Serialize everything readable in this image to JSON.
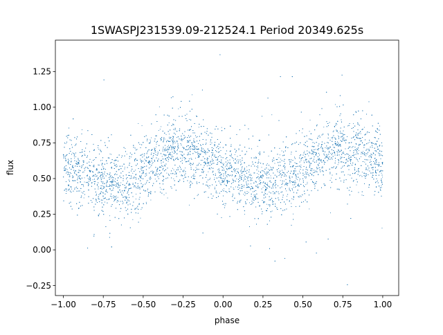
{
  "chart_data": {
    "type": "scatter",
    "title": "1SWASPJ231539.09-212524.1 Period 20349.625s",
    "xlabel": "phase",
    "ylabel": "flux",
    "xlim": [
      -1.05,
      1.1
    ],
    "ylim": [
      -0.32,
      1.47
    ],
    "xticks": [
      -1.0,
      -0.75,
      -0.5,
      -0.25,
      0.0,
      0.25,
      0.5,
      0.75,
      1.0
    ],
    "xtick_labels": [
      "−1.00",
      "−0.75",
      "−0.50",
      "−0.25",
      "0.00",
      "0.25",
      "0.50",
      "0.75",
      "1.00"
    ],
    "yticks": [
      -0.25,
      0.0,
      0.25,
      0.5,
      0.75,
      1.0,
      1.25
    ],
    "ytick_labels": [
      "−0.25",
      "0.00",
      "0.25",
      "0.50",
      "0.75",
      "1.00",
      "1.25"
    ],
    "grid": false,
    "marker_color": "#1f77b4",
    "series": [
      {
        "phase_range": [
          -1.0,
          1.0
        ],
        "curve_phase": [
          -1.0,
          -0.9,
          -0.8,
          -0.7,
          -0.6,
          -0.5,
          -0.4,
          -0.3,
          -0.2,
          -0.1,
          0.0,
          0.1,
          0.2,
          0.3,
          0.4,
          0.5,
          0.6,
          0.7,
          0.8,
          0.9,
          1.0
        ],
        "curve_flux": [
          0.58,
          0.55,
          0.5,
          0.47,
          0.48,
          0.55,
          0.64,
          0.7,
          0.69,
          0.63,
          0.56,
          0.51,
          0.47,
          0.46,
          0.5,
          0.58,
          0.65,
          0.7,
          0.69,
          0.65,
          0.59
        ],
        "scatter_sd": 0.12,
        "n_points": 9000
      }
    ]
  }
}
